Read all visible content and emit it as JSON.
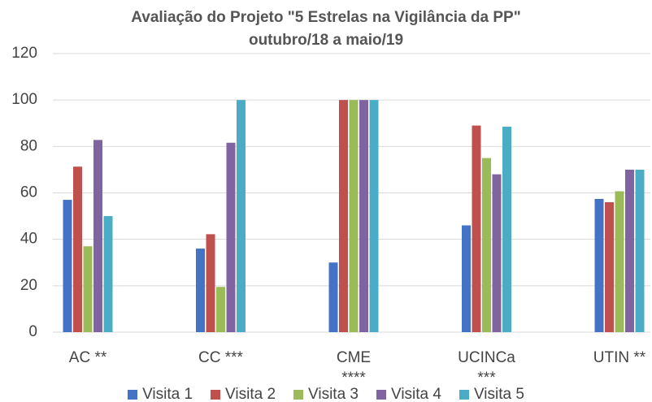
{
  "chart_data": {
    "type": "bar",
    "title": "Avaliação do Projeto \"5 Estrelas na Vigilância da PP\"\noutubro/18 a maio/19",
    "categories": [
      "AC **",
      "CC ***",
      "CME\n****",
      "UCINCa\n***",
      "UTIN **"
    ],
    "series": [
      {
        "name": "Visita 1",
        "color": "#4472c4",
        "values": [
          57,
          36,
          30,
          46,
          57.4
        ]
      },
      {
        "name": "Visita 2",
        "color": "#c0504d",
        "values": [
          71.3,
          42.2,
          100,
          89,
          56
        ]
      },
      {
        "name": "Visita 3",
        "color": "#9bbb59",
        "values": [
          37,
          19.5,
          100,
          75,
          60.7
        ]
      },
      {
        "name": "Visita 4",
        "color": "#8064a2",
        "values": [
          82.8,
          81.6,
          100,
          68,
          70
        ]
      },
      {
        "name": "Visita 5",
        "color": "#4bacc6",
        "values": [
          50,
          100,
          100,
          88.5,
          70
        ]
      }
    ],
    "ylim": [
      0,
      120
    ],
    "yticks": [
      0,
      20,
      40,
      60,
      80,
      100,
      120
    ],
    "grid": true,
    "legend": "bottom"
  }
}
